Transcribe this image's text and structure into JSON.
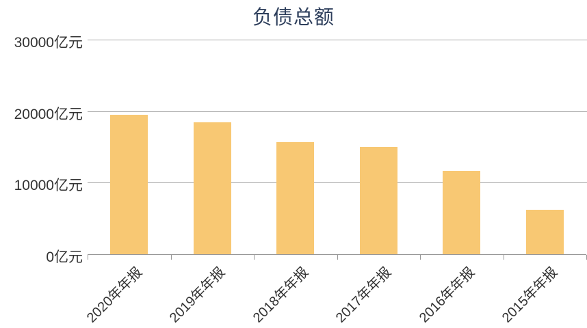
{
  "chart_data": {
    "type": "bar",
    "title": "负债总额",
    "unit": "亿元",
    "categories": [
      "2020年年报",
      "2019年年报",
      "2018年年报",
      "2017年年报",
      "2016年年报",
      "2015年年报"
    ],
    "values": [
      19500,
      18400,
      15650,
      15000,
      11650,
      6200
    ],
    "ylim": [
      0,
      30000
    ],
    "yticks": [
      0,
      10000,
      20000,
      30000
    ],
    "ytick_labels": [
      "0亿元",
      "10000亿元",
      "20000亿元",
      "30000亿元"
    ],
    "xlabel": "",
    "ylabel": "",
    "grid": true,
    "legend_position": "none",
    "colors": {
      "bar": "#F8C873",
      "title": "#2E3F5C",
      "axis_label": "#333333",
      "gridline": "#A6A6A6",
      "axis_line": "#979797",
      "background": "#FFFFFF"
    }
  }
}
